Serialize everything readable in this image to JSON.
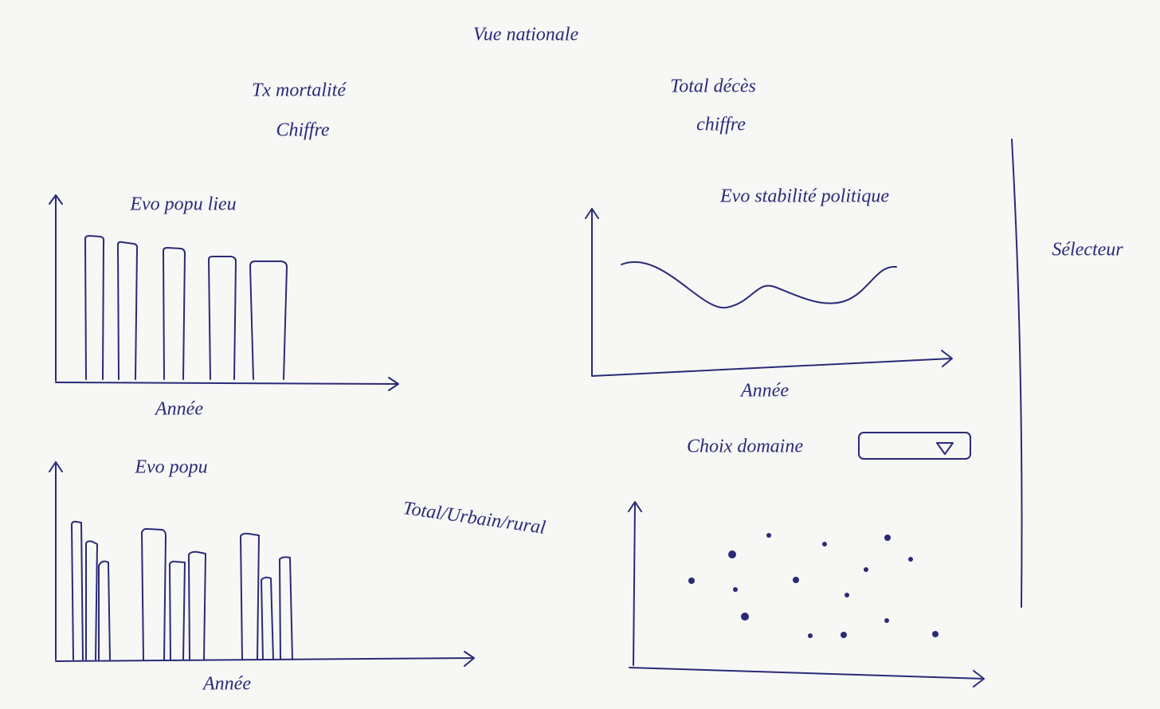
{
  "header": {
    "title": "Vue nationale"
  },
  "kpis": [
    {
      "label": "Tx mortalité",
      "value": "Chiffre"
    },
    {
      "label": "Total décès",
      "value": "chiffre"
    }
  ],
  "charts": [
    {
      "title": "Evo popu lieu",
      "x_label": "Année"
    },
    {
      "title": "Evo popu",
      "x_label": "Année",
      "note": "Total/Urbain/rural"
    },
    {
      "title": "Evo stabilité politique",
      "x_label": "Année"
    }
  ],
  "filter": {
    "label": "Choix domaine"
  },
  "sidebar": {
    "label": "Sélecteur"
  }
}
